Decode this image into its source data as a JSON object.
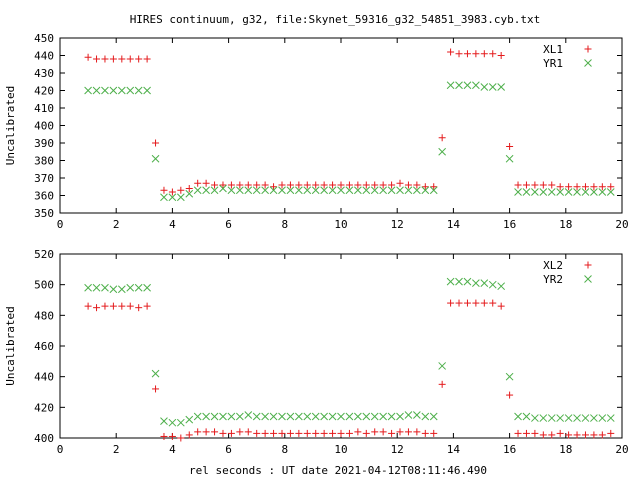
{
  "figure": {
    "title": "HIRES continuum, g32, file:Skynet_59316_g32_54851_3983.cyb.txt",
    "xlabel": "rel seconds : UT date 2021-04-12T08:11:46.490"
  },
  "chart_data": [
    {
      "type": "scatter",
      "ylabel": "Uncalibrated",
      "xlim": [
        0,
        20
      ],
      "ylim": [
        350,
        450
      ],
      "xticks": [
        0,
        2,
        4,
        6,
        8,
        10,
        12,
        14,
        16,
        18,
        20
      ],
      "yticks": [
        350,
        360,
        370,
        380,
        390,
        400,
        410,
        420,
        430,
        440,
        450
      ],
      "grid": false,
      "legend": "top-right",
      "series": [
        {
          "name": "XL1",
          "marker": "+",
          "color": "#e41a1c",
          "x": [
            1.0,
            1.3,
            1.6,
            1.9,
            2.2,
            2.5,
            2.8,
            3.1,
            3.4,
            3.7,
            4.0,
            4.3,
            4.6,
            4.9,
            5.2,
            5.5,
            5.8,
            6.1,
            6.4,
            6.7,
            7.0,
            7.3,
            7.6,
            7.9,
            8.2,
            8.5,
            8.8,
            9.1,
            9.4,
            9.7,
            10.0,
            10.3,
            10.6,
            10.9,
            11.2,
            11.5,
            11.8,
            12.1,
            12.4,
            12.7,
            13.0,
            13.3,
            13.6,
            13.9,
            14.2,
            14.5,
            14.8,
            15.1,
            15.4,
            15.7,
            16.0,
            16.3,
            16.6,
            16.9,
            17.2,
            17.5,
            17.8,
            18.1,
            18.4,
            18.7,
            19.0,
            19.3,
            19.6
          ],
          "y": [
            439,
            438,
            438,
            438,
            438,
            438,
            438,
            438,
            390,
            363,
            362,
            363,
            364,
            367,
            367,
            366,
            366,
            366,
            366,
            366,
            366,
            366,
            365,
            366,
            366,
            366,
            366,
            366,
            366,
            366,
            366,
            366,
            366,
            366,
            366,
            366,
            366,
            367,
            366,
            366,
            365,
            365,
            393,
            442,
            441,
            441,
            441,
            441,
            441,
            440,
            388,
            366,
            366,
            366,
            366,
            366,
            365,
            365,
            365,
            365,
            365,
            365,
            365
          ]
        },
        {
          "name": "YR1",
          "marker": "x",
          "color": "#4daf4a",
          "x": [
            1.0,
            1.3,
            1.6,
            1.9,
            2.2,
            2.5,
            2.8,
            3.1,
            3.4,
            3.7,
            4.0,
            4.3,
            4.6,
            4.9,
            5.2,
            5.5,
            5.8,
            6.1,
            6.4,
            6.7,
            7.0,
            7.3,
            7.6,
            7.9,
            8.2,
            8.5,
            8.8,
            9.1,
            9.4,
            9.7,
            10.0,
            10.3,
            10.6,
            10.9,
            11.2,
            11.5,
            11.8,
            12.1,
            12.4,
            12.7,
            13.0,
            13.3,
            13.6,
            13.9,
            14.2,
            14.5,
            14.8,
            15.1,
            15.4,
            15.7,
            16.0,
            16.3,
            16.6,
            16.9,
            17.2,
            17.5,
            17.8,
            18.1,
            18.4,
            18.7,
            19.0,
            19.3,
            19.6
          ],
          "y": [
            420,
            420,
            420,
            420,
            420,
            420,
            420,
            420,
            381,
            359,
            359,
            359,
            361,
            363,
            363,
            363,
            364,
            363,
            363,
            363,
            363,
            363,
            363,
            363,
            363,
            363,
            363,
            363,
            363,
            363,
            363,
            363,
            363,
            363,
            363,
            363,
            363,
            363,
            363,
            363,
            363,
            363,
            385,
            423,
            423,
            423,
            423,
            422,
            422,
            422,
            381,
            362,
            362,
            362,
            362,
            362,
            362,
            362,
            362,
            362,
            362,
            362,
            362
          ]
        }
      ]
    },
    {
      "type": "scatter",
      "ylabel": "Uncalibrated",
      "xlim": [
        0,
        20
      ],
      "ylim": [
        400,
        520
      ],
      "xticks": [
        0,
        2,
        4,
        6,
        8,
        10,
        12,
        14,
        16,
        18,
        20
      ],
      "yticks": [
        400,
        420,
        440,
        460,
        480,
        500,
        520
      ],
      "grid": false,
      "legend": "top-right",
      "series": [
        {
          "name": "XL2",
          "marker": "+",
          "color": "#e41a1c",
          "x": [
            1.0,
            1.3,
            1.6,
            1.9,
            2.2,
            2.5,
            2.8,
            3.1,
            3.4,
            3.7,
            4.0,
            4.3,
            4.6,
            4.9,
            5.2,
            5.5,
            5.8,
            6.1,
            6.4,
            6.7,
            7.0,
            7.3,
            7.6,
            7.9,
            8.2,
            8.5,
            8.8,
            9.1,
            9.4,
            9.7,
            10.0,
            10.3,
            10.6,
            10.9,
            11.2,
            11.5,
            11.8,
            12.1,
            12.4,
            12.7,
            13.0,
            13.3,
            13.6,
            13.9,
            14.2,
            14.5,
            14.8,
            15.1,
            15.4,
            15.7,
            16.0,
            16.3,
            16.6,
            16.9,
            17.2,
            17.5,
            17.8,
            18.1,
            18.4,
            18.7,
            19.0,
            19.3,
            19.6
          ],
          "y": [
            486,
            485,
            486,
            486,
            486,
            486,
            485,
            486,
            432,
            401,
            401,
            400,
            402,
            404,
            404,
            404,
            403,
            403,
            404,
            404,
            403,
            403,
            403,
            403,
            403,
            403,
            403,
            403,
            403,
            403,
            403,
            403,
            404,
            403,
            404,
            404,
            403,
            404,
            404,
            404,
            403,
            403,
            435,
            488,
            488,
            488,
            488,
            488,
            488,
            486,
            428,
            403,
            403,
            403,
            402,
            402,
            403,
            402,
            402,
            402,
            402,
            402,
            403
          ]
        },
        {
          "name": "YR2",
          "marker": "x",
          "color": "#4daf4a",
          "x": [
            1.0,
            1.3,
            1.6,
            1.9,
            2.2,
            2.5,
            2.8,
            3.1,
            3.4,
            3.7,
            4.0,
            4.3,
            4.6,
            4.9,
            5.2,
            5.5,
            5.8,
            6.1,
            6.4,
            6.7,
            7.0,
            7.3,
            7.6,
            7.9,
            8.2,
            8.5,
            8.8,
            9.1,
            9.4,
            9.7,
            10.0,
            10.3,
            10.6,
            10.9,
            11.2,
            11.5,
            11.8,
            12.1,
            12.4,
            12.7,
            13.0,
            13.3,
            13.6,
            13.9,
            14.2,
            14.5,
            14.8,
            15.1,
            15.4,
            15.7,
            16.0,
            16.3,
            16.6,
            16.9,
            17.2,
            17.5,
            17.8,
            18.1,
            18.4,
            18.7,
            19.0,
            19.3,
            19.6
          ],
          "y": [
            498,
            498,
            498,
            497,
            497,
            498,
            498,
            498,
            442,
            411,
            410,
            410,
            412,
            414,
            414,
            414,
            414,
            414,
            414,
            415,
            414,
            414,
            414,
            414,
            414,
            414,
            414,
            414,
            414,
            414,
            414,
            414,
            414,
            414,
            414,
            414,
            414,
            414,
            415,
            415,
            414,
            414,
            447,
            502,
            502,
            502,
            501,
            501,
            500,
            499,
            440,
            414,
            414,
            413,
            413,
            413,
            413,
            413,
            413,
            413,
            413,
            413,
            413
          ]
        }
      ]
    }
  ]
}
